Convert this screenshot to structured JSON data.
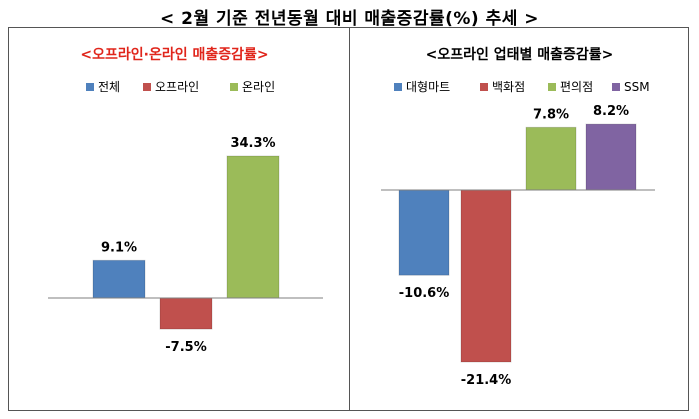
{
  "title": "< 2월 기준 전년동월 대비 매출증감률(%) 추세 >",
  "chart_data": [
    {
      "type": "bar",
      "title": "<오프라인·온라인 매출증감률>",
      "title_color": "#e0251b",
      "categories": [
        "전체",
        "오프라인",
        "온라인"
      ],
      "values": [
        9.1,
        -7.5,
        34.3
      ],
      "data_labels": [
        "9.1%",
        "-7.5%",
        "34.3%"
      ],
      "colors": [
        "#4f81bd",
        "#c0504d",
        "#9bbb59"
      ],
      "legend_position": "top",
      "grid": false
    },
    {
      "type": "bar",
      "title": "<오프라인 업태별 매출증감률>",
      "title_color": "#000000",
      "categories": [
        "대형마트",
        "백화점",
        "편의점",
        "SSM"
      ],
      "values": [
        -10.6,
        -21.4,
        7.8,
        8.2
      ],
      "data_labels": [
        "-10.6%",
        "-21.4%",
        "7.8%",
        "8.2%"
      ],
      "colors": [
        "#4f81bd",
        "#c0504d",
        "#9bbb59",
        "#8064a2"
      ],
      "legend_position": "top",
      "grid": false
    }
  ]
}
